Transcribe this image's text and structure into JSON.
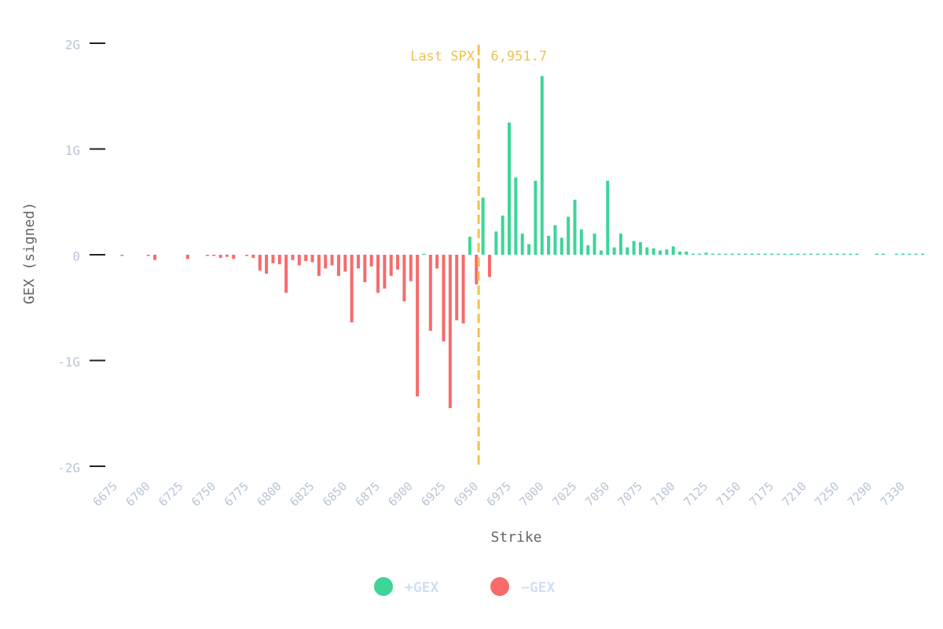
{
  "chart_data": {
    "type": "bar",
    "x_label": "Strike",
    "y_label": "GEX (signed)",
    "categories": [
      "6675",
      null,
      null,
      null,
      null,
      "6700",
      null,
      null,
      null,
      null,
      "6725",
      null,
      null,
      null,
      null,
      "6750",
      null,
      null,
      null,
      null,
      "6775",
      null,
      null,
      null,
      null,
      "6800",
      null,
      null,
      null,
      null,
      "6825",
      null,
      null,
      null,
      null,
      "6850",
      null,
      null,
      null,
      null,
      "6875",
      null,
      null,
      null,
      null,
      "6900",
      null,
      null,
      null,
      null,
      "6925",
      null,
      null,
      null,
      null,
      "6950",
      null,
      null,
      null,
      null,
      "6975",
      null,
      null,
      null,
      null,
      "7000",
      null,
      null,
      null,
      null,
      "7025",
      null,
      null,
      null,
      null,
      "7050",
      null,
      null,
      null,
      null,
      "7075",
      null,
      null,
      null,
      null,
      "7100",
      null,
      null,
      null,
      null,
      "7125",
      null,
      null,
      null,
      null,
      "7150",
      null,
      null,
      null,
      null,
      "7175",
      null,
      null,
      null,
      null,
      "7210",
      null,
      null,
      null,
      null,
      "7250",
      null,
      null,
      null,
      null,
      "7290",
      null,
      null,
      null,
      null,
      "7330",
      null,
      null,
      null
    ],
    "values": [
      null,
      -0.01,
      null,
      null,
      null,
      -0.01,
      -0.05,
      null,
      null,
      null,
      null,
      -0.04,
      null,
      null,
      -0.01,
      -0.01,
      -0.03,
      -0.02,
      -0.04,
      null,
      -0.01,
      -0.03,
      -0.15,
      -0.18,
      -0.08,
      -0.09,
      -0.36,
      -0.05,
      -0.1,
      -0.06,
      -0.07,
      -0.2,
      -0.13,
      -0.1,
      -0.2,
      -0.16,
      -0.64,
      -0.13,
      -0.26,
      -0.11,
      -0.36,
      -0.32,
      -0.2,
      -0.14,
      -0.44,
      -0.25,
      -1.34,
      0.01,
      -0.72,
      -0.13,
      -0.82,
      -1.45,
      -0.62,
      -0.65,
      0.17,
      -0.28,
      0.54,
      -0.21,
      0.22,
      0.37,
      1.25,
      0.73,
      0.2,
      0.1,
      0.7,
      1.69,
      0.18,
      0.28,
      0.16,
      0.36,
      0.52,
      0.24,
      0.09,
      0.2,
      0.04,
      0.7,
      0.07,
      0.2,
      0.07,
      0.13,
      0.12,
      0.07,
      0.06,
      0.04,
      0.05,
      0.08,
      0.03,
      0.03,
      0.01,
      0.01,
      0.02,
      0.01,
      0.01,
      0.01,
      0.01,
      0.01,
      0.01,
      0.01,
      0.01,
      0.01,
      0.01,
      0.01,
      0.01,
      0.01,
      0.01,
      0.01,
      0.01,
      0.01,
      0.01,
      0.01,
      0.01,
      0.01,
      0.01,
      0.01,
      null,
      null,
      0.01,
      0.01,
      null,
      0.01,
      0.01,
      0.01,
      0.01,
      0.01
    ],
    "positive_color": "#3dd598",
    "negative_color": "#f76b6b",
    "ylim": [
      -2,
      2
    ],
    "yticks": [
      {
        "value": -2,
        "label": "-2G"
      },
      {
        "value": -1,
        "label": "-1G"
      },
      0,
      {
        "value": 1,
        "label": "1G"
      },
      {
        "value": 2,
        "label": "2G"
      }
    ],
    "annotation": {
      "text": "Last SPX: 6,951.7",
      "value": 6951.7,
      "color": "#f2c14e"
    },
    "legend": [
      {
        "name": "+GEX",
        "color": "#3dd598"
      },
      {
        "name": "−GEX",
        "color": "#f76b6b"
      }
    ]
  }
}
